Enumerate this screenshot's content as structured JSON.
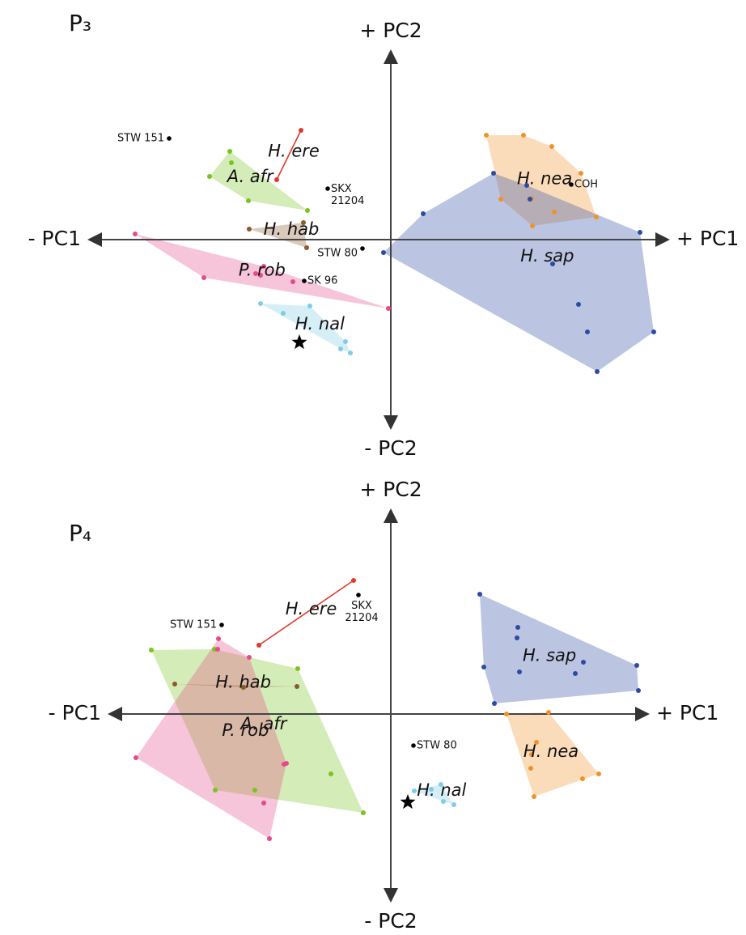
{
  "chart_data": [
    {
      "type": "scatter",
      "title": "P₃",
      "x_label_neg": "- PC1",
      "x_label_pos": "+ PC1",
      "y_label_pos": "+ PC2",
      "y_label_neg": "- PC2",
      "xlim": [
        -37.5,
        34.5
      ],
      "ylim": [
        -23.5,
        23.5
      ],
      "series": [
        {
          "name": "A. afr",
          "color": "#7ac41e",
          "x": [
            -19.9,
            -19.7,
            -22.4,
            -17.6,
            -10.3
          ],
          "y": [
            10.9,
            9.5,
            7.8,
            4.8,
            3.6
          ]
        },
        {
          "name": "H. ere",
          "color": "#e0382a",
          "x": [
            -11.1,
            -14.1
          ],
          "y": [
            13.5,
            7.4
          ]
        },
        {
          "name": "H. hab",
          "color": "#8b5a2b",
          "x": [
            -10.8,
            -17.5,
            -10.4
          ],
          "y": [
            2.1,
            1.3,
            -1.0
          ]
        },
        {
          "name": "P. rob",
          "color": "#e64a8a",
          "x": [
            -31.6,
            -23.1,
            -16.7,
            -16.1,
            -15.7,
            -12.1,
            -0.3
          ],
          "y": [
            0.7,
            -4.7,
            -4.2,
            -4.4,
            -3.3,
            -5.2,
            -8.5
          ]
        },
        {
          "name": "H. nal",
          "color": "#7fcde6",
          "x": [
            -16.1,
            -13.3,
            -10.0,
            -5.6,
            -6.2,
            -5.0
          ],
          "y": [
            -7.9,
            -9.1,
            -8.2,
            -12.6,
            -13.5,
            -14.0
          ],
          "star": {
            "x": -11.3,
            "y": -12.7
          }
        },
        {
          "name": "H. nea",
          "color": "#f0922a",
          "x": [
            11.8,
            16.4,
            19.9,
            23.5,
            17.4,
            13.6,
            20.2,
            17.5,
            25.4
          ],
          "y": [
            12.9,
            12.9,
            11.5,
            8.2,
            5.1,
            5.0,
            3.4,
            1.7,
            2.8
          ]
        },
        {
          "name": "H. sap",
          "color": "#2d4aa6",
          "x": [
            12.7,
            16.8,
            17.2,
            4.0,
            -0.9,
            30.8,
            20.0,
            23.2,
            24.3,
            32.5,
            25.5
          ],
          "y": [
            8.2,
            6.7,
            5.0,
            3.2,
            -1.6,
            0.9,
            -3.0,
            -8.0,
            -11.4,
            -11.4,
            -16.3
          ]
        }
      ],
      "specimens": [
        {
          "name": "STW 151",
          "x": -27.4,
          "y": 12.5,
          "label_side": "left"
        },
        {
          "name": "SKX 21204",
          "x": -7.8,
          "y": 6.3,
          "label_side": "right"
        },
        {
          "name": "STW 80",
          "x": -3.5,
          "y": -1.1,
          "label_side": "left"
        },
        {
          "name": "SK 96",
          "x": -10.7,
          "y": -5.1,
          "label_side": "right"
        },
        {
          "name": "COH",
          "x": 22.3,
          "y": 6.8,
          "label_side": "right"
        }
      ]
    },
    {
      "type": "scatter",
      "title": "P₄",
      "x_label_neg": "- PC1",
      "x_label_pos": "+ PC1",
      "y_label_pos": "+ PC2",
      "y_label_neg": "- PC2",
      "xlim": [
        -35,
        32
      ],
      "ylim": [
        -23.3,
        25.4
      ],
      "series": [
        {
          "name": "H. ere",
          "color": "#e0382a",
          "x": [
            -4.6,
            -16.3
          ],
          "y": [
            16.5,
            8.5
          ]
        },
        {
          "name": "A. afr",
          "color": "#7ac41e",
          "x": [
            -29.6,
            -21.8,
            -11.5,
            -7.4,
            -3.4,
            -16.8,
            -21.7,
            -18.3
          ],
          "y": [
            7.9,
            8.0,
            5.6,
            -7.4,
            -12.2,
            -9.4,
            -9.4,
            3.3
          ]
        },
        {
          "name": "P. rob",
          "color": "#e64a8a",
          "x": [
            -21.3,
            -21.4,
            -17.5,
            -31.5,
            -13.2,
            -12.9,
            -15.7,
            -15.0
          ],
          "y": [
            9.3,
            8.0,
            7.0,
            -5.4,
            -6.2,
            -6.1,
            -11.0,
            -15.4
          ]
        },
        {
          "name": "H. hab",
          "color": "#8b5a2b",
          "x": [
            -26.7,
            -11.6,
            -18.2
          ],
          "y": [
            3.7,
            3.4,
            3.3
          ]
        },
        {
          "name": "H. sap",
          "color": "#2d4aa6",
          "x": [
            11.0,
            15.7,
            15.6,
            15.9,
            11.5,
            12.8,
            22.8,
            23.8,
            30.4,
            30.6
          ],
          "y": [
            14.8,
            10.7,
            9.4,
            5.2,
            5.8,
            1.3,
            5.0,
            6.4,
            6.0,
            2.9
          ]
        },
        {
          "name": "H. nea",
          "color": "#f0922a",
          "x": [
            14.3,
            19.5,
            18.0,
            17.4,
            17.3,
            25.7,
            23.7,
            17.7
          ],
          "y": [
            0.0,
            0.2,
            -3.5,
            -5.0,
            -6.7,
            -7.4,
            -8.0,
            -10.2
          ]
        },
        {
          "name": "H. nal",
          "color": "#7fcde6",
          "x": [
            2.9,
            5.0,
            6.2,
            7.8,
            6.5
          ],
          "y": [
            -9.5,
            -9.3,
            -8.7,
            -11.2,
            -10.8
          ],
          "star": {
            "x": 2.1,
            "y": -10.9
          }
        }
      ],
      "specimens": [
        {
          "name": "STW 151",
          "x": -20.9,
          "y": 11.0,
          "label_side": "left"
        },
        {
          "name": "SKX 21204",
          "x": -4.0,
          "y": 14.7,
          "label_side": "below"
        },
        {
          "name": "STW 80",
          "x": 2.8,
          "y": -3.9,
          "label_side": "right"
        }
      ]
    }
  ]
}
